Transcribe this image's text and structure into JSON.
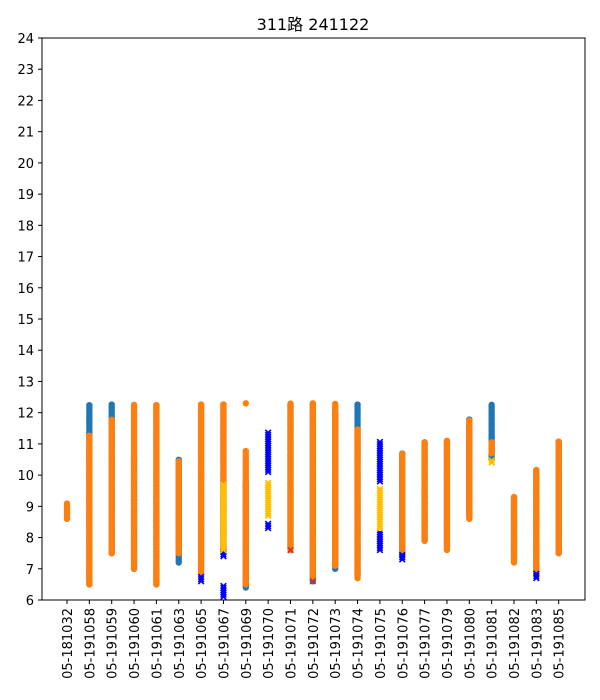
{
  "chart_data": {
    "type": "scatter",
    "title": "311路 241122",
    "xlabel": "",
    "ylabel": "",
    "ylim": [
      6,
      24
    ],
    "yticks": [
      6,
      7,
      8,
      9,
      10,
      11,
      12,
      13,
      14,
      15,
      16,
      17,
      18,
      19,
      20,
      21,
      22,
      23,
      24
    ],
    "grid": false,
    "categories": [
      "05-181032",
      "05-191058",
      "05-191059",
      "05-191060",
      "05-191061",
      "05-191063",
      "05-191065",
      "05-191067",
      "05-191069",
      "05-191070",
      "05-191071",
      "05-191072",
      "05-191073",
      "05-191074",
      "05-191075",
      "05-191076",
      "05-191077",
      "05-191079",
      "05-191080",
      "05-191081",
      "05-191082",
      "05-191083",
      "05-191085"
    ],
    "colors": {
      "blue_dot": "#1f77b4",
      "orange_dot": "#ff7f0e",
      "blue_x": "#0000ff",
      "yellow_x": "#ffc000",
      "red_x": "#d62728"
    },
    "series": [
      {
        "marker": "circle",
        "color_key": "blue_dot",
        "ranges": [
          [
            1,
            6.5,
            12.3
          ],
          [
            2,
            7.5,
            12.3
          ],
          [
            3,
            7.0,
            10.6
          ],
          [
            4,
            6.5,
            12.3
          ],
          [
            5,
            7.2,
            10.5
          ],
          [
            6,
            7.0,
            12.3
          ],
          [
            7,
            7.5,
            12.3
          ],
          [
            8,
            6.4,
            9.8
          ],
          [
            10,
            7.7,
            12.3
          ],
          [
            11,
            6.6,
            12.3
          ],
          [
            12,
            7.0,
            12.1
          ],
          [
            13,
            6.8,
            12.3
          ],
          [
            15,
            7.4,
            10.7
          ],
          [
            16,
            7.9,
            11.1
          ],
          [
            17,
            7.7,
            11.1
          ],
          [
            18,
            8.7,
            11.8
          ],
          [
            19,
            10.5,
            12.3
          ],
          [
            20,
            7.3,
            9.3
          ],
          [
            21,
            6.8,
            10.2
          ],
          [
            22,
            7.5,
            11.1
          ]
        ]
      },
      {
        "marker": "circle",
        "color_key": "orange_dot",
        "ranges": [
          [
            0,
            8.6,
            9.1
          ],
          [
            1,
            6.5,
            11.3
          ],
          [
            2,
            7.5,
            11.8
          ],
          [
            3,
            7.0,
            12.3
          ],
          [
            4,
            6.5,
            12.3
          ],
          [
            5,
            7.5,
            10.5
          ],
          [
            6,
            6.8,
            12.3
          ],
          [
            7,
            7.5,
            12.3
          ],
          [
            8,
            6.5,
            10.8
          ],
          [
            10,
            7.6,
            12.3
          ],
          [
            11,
            6.7,
            12.3
          ],
          [
            12,
            7.1,
            12.3
          ],
          [
            13,
            6.7,
            11.5
          ],
          [
            15,
            7.6,
            10.7
          ],
          [
            16,
            7.9,
            11.1
          ],
          [
            17,
            7.6,
            11.1
          ],
          [
            18,
            8.6,
            11.8
          ],
          [
            19,
            10.7,
            11.1
          ],
          [
            20,
            7.2,
            9.3
          ],
          [
            21,
            6.8,
            10.2
          ],
          [
            22,
            7.5,
            11.1
          ]
        ]
      },
      {
        "marker": "circle",
        "color_key": "orange_dot",
        "points": [
          [
            8,
            12.3
          ]
        ]
      },
      {
        "marker": "x",
        "color_key": "blue_x",
        "ranges": [
          [
            6,
            6.6,
            6.8
          ],
          [
            7,
            6.1,
            6.5
          ],
          [
            7,
            7.4,
            7.6
          ],
          [
            9,
            8.3,
            8.5
          ],
          [
            9,
            10.1,
            11.4
          ],
          [
            14,
            7.6,
            8.2
          ],
          [
            14,
            9.8,
            11.1
          ],
          [
            15,
            7.3,
            7.5
          ],
          [
            21,
            6.7,
            6.9
          ]
        ]
      },
      {
        "marker": "x",
        "color_key": "yellow_x",
        "ranges": [
          [
            7,
            7.6,
            9.7
          ],
          [
            9,
            8.7,
            9.8
          ],
          [
            14,
            8.3,
            9.6
          ],
          [
            19,
            10.4,
            10.5
          ]
        ]
      },
      {
        "marker": "x",
        "color_key": "red_x",
        "points": [
          [
            10,
            7.6
          ],
          [
            11,
            6.6
          ]
        ]
      }
    ]
  }
}
